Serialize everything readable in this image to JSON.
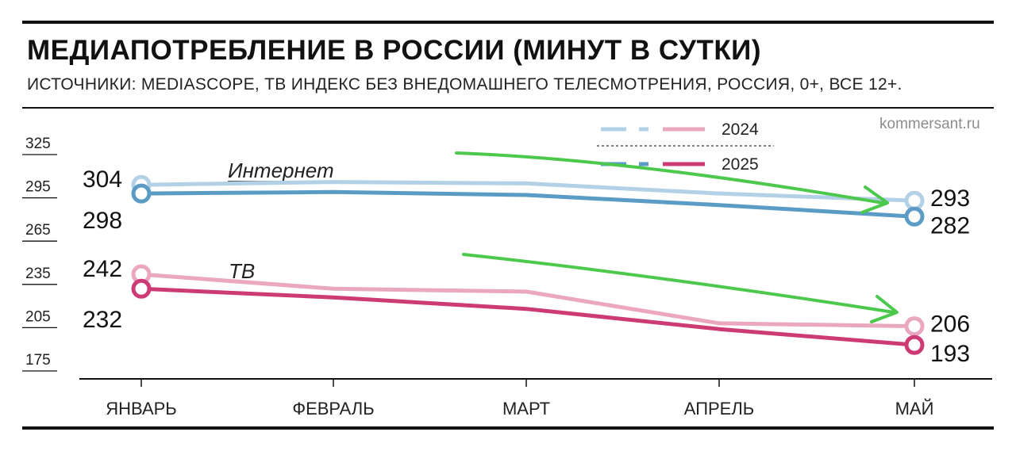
{
  "title": "МЕДИАПОТРЕБЛЕНИЕ В РОССИИ (МИНУТ В СУТКИ)",
  "subtitle": "ИСТОЧНИКИ: MEDIASCOPE, ТВ ИНДЕКС БЕЗ ВНЕДОМАШНЕГО ТЕЛЕСМОТРЕНИЯ, РОССИЯ, 0+, ВСЕ 12+.",
  "source": "kommersant.ru",
  "legend": {
    "year_a": "2024",
    "year_b": "2025"
  },
  "colors": {
    "internet_2024": "#b3d1e6",
    "internet_2025": "#5b9cc6",
    "tv_2024": "#eba7c0",
    "tv_2025": "#cc3b74",
    "trend_arrow": "#4cc94c"
  },
  "chart_data": {
    "type": "line",
    "categories": [
      "ЯНВАРЬ",
      "ФЕВРАЛЬ",
      "МАРТ",
      "АПРЕЛЬ",
      "МАЙ"
    ],
    "ylim": [
      175,
      325
    ],
    "yticks": [
      "325",
      "295",
      "265",
      "235",
      "205",
      "175"
    ],
    "groups": [
      "Интернет",
      "ТВ"
    ],
    "series": [
      {
        "group": "Интернет",
        "year": "2024",
        "values": [
          304,
          306,
          305,
          298,
          293
        ],
        "start_label": "304",
        "end_label": "293"
      },
      {
        "group": "Интернет",
        "year": "2025",
        "values": [
          298,
          299,
          297,
          290,
          282
        ],
        "start_label": "298",
        "end_label": "282"
      },
      {
        "group": "ТВ",
        "year": "2024",
        "values": [
          242,
          232,
          230,
          208,
          206
        ],
        "start_label": "242",
        "end_label": "206"
      },
      {
        "group": "ТВ",
        "year": "2025",
        "values": [
          232,
          226,
          218,
          204,
          193
        ],
        "start_label": "232",
        "end_label": "193"
      }
    ],
    "legend_position": "top-right",
    "grid": false
  }
}
